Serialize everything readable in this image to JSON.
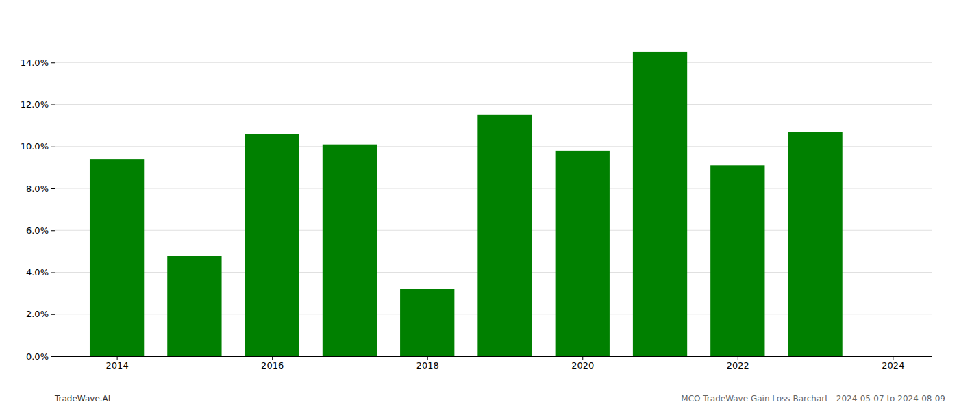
{
  "chart_data": {
    "type": "bar",
    "x": [
      2014,
      2015,
      2016,
      2017,
      2018,
      2019,
      2020,
      2021,
      2022,
      2023
    ],
    "values": [
      0.094,
      0.048,
      0.106,
      0.101,
      0.032,
      0.115,
      0.098,
      0.145,
      0.091,
      0.107
    ],
    "color": "#008000",
    "xlim": [
      2013.2,
      2024.5
    ],
    "xticks": [
      2014,
      2016,
      2018,
      2020,
      2022,
      2024
    ],
    "ylim": [
      0.0,
      0.16
    ],
    "yticks": [
      {
        "value": 0.0,
        "label": "0.0%"
      },
      {
        "value": 0.02,
        "label": "2.0%"
      },
      {
        "value": 0.04,
        "label": "4.0%"
      },
      {
        "value": 0.06,
        "label": "6.0%"
      },
      {
        "value": 0.08,
        "label": "8.0%"
      },
      {
        "value": 0.1,
        "label": "10.0%"
      },
      {
        "value": 0.12,
        "label": "12.0%"
      },
      {
        "value": 0.14,
        "label": "14.0%"
      }
    ],
    "grid": true,
    "annotations": [
      "TradeWave.AI",
      "MCO TradeWave Gain Loss Barchart - 2024-05-07 to 2024-08-09"
    ]
  }
}
